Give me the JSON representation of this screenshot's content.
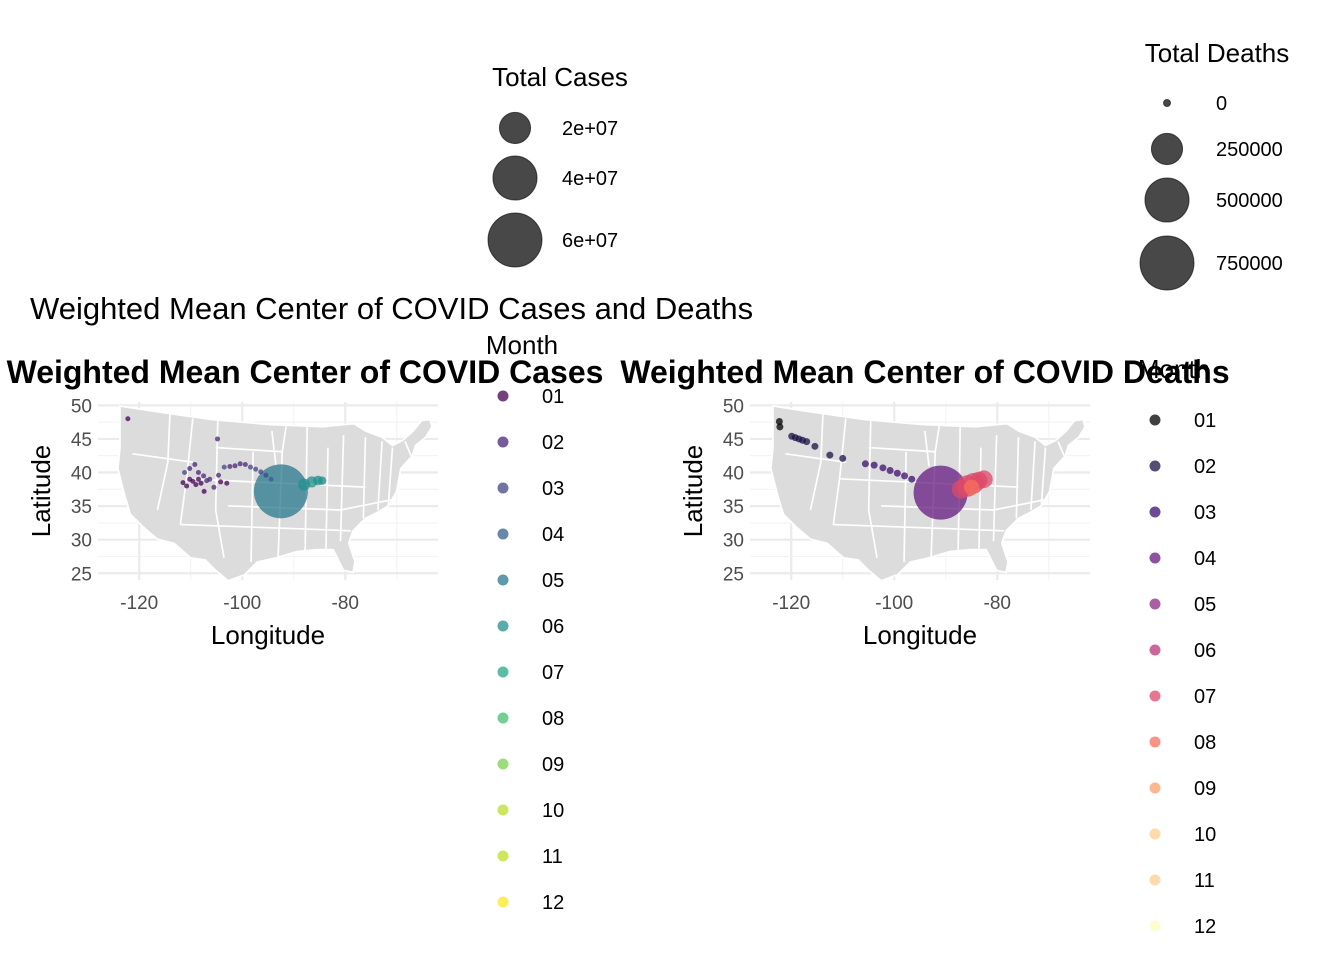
{
  "figure": {
    "title": "Weighted Mean Center of COVID Cases and Deaths"
  },
  "size_legends": [
    {
      "title": "Total Cases",
      "items": [
        {
          "label": "2e+07",
          "value": 20000000
        },
        {
          "label": "4e+07",
          "value": 40000000
        },
        {
          "label": "6e+07",
          "value": 60000000
        }
      ],
      "color": "#1a1a1a",
      "alpha": 0.8
    },
    {
      "title": "Total Deaths",
      "items": [
        {
          "label": "0",
          "value": 0
        },
        {
          "label": "250000",
          "value": 250000
        },
        {
          "label": "500000",
          "value": 500000
        },
        {
          "label": "750000",
          "value": 750000
        }
      ],
      "color": "#1a1a1a",
      "alpha": 0.8
    }
  ],
  "color_legends": [
    {
      "title": "Month",
      "palette": "viridis",
      "items": [
        {
          "label": "01",
          "color": "#440154"
        },
        {
          "label": "02",
          "color": "#482576"
        },
        {
          "label": "03",
          "color": "#414487"
        },
        {
          "label": "04",
          "color": "#35608D"
        },
        {
          "label": "05",
          "color": "#2A788E"
        },
        {
          "label": "06",
          "color": "#21908C"
        },
        {
          "label": "07",
          "color": "#22A884"
        },
        {
          "label": "08",
          "color": "#43BF71"
        },
        {
          "label": "09",
          "color": "#7AD151"
        },
        {
          "label": "10",
          "color": "#BBDF27"
        },
        {
          "label": "11",
          "color": "#BBDF27"
        },
        {
          "label": "12",
          "color": "#FDE725"
        }
      ]
    },
    {
      "title": "Month",
      "palette": "magma",
      "items": [
        {
          "label": "01",
          "color": "#000004"
        },
        {
          "label": "02",
          "color": "#1D1147"
        },
        {
          "label": "03",
          "color": "#3B0F70"
        },
        {
          "label": "04",
          "color": "#641A80"
        },
        {
          "label": "05",
          "color": "#8C2981"
        },
        {
          "label": "06",
          "color": "#B5367A"
        },
        {
          "label": "07",
          "color": "#DE4968"
        },
        {
          "label": "08",
          "color": "#F7705C"
        },
        {
          "label": "09",
          "color": "#FE9F6D"
        },
        {
          "label": "10",
          "color": "#FECF92"
        },
        {
          "label": "11",
          "color": "#FECF92"
        },
        {
          "label": "12",
          "color": "#FCFDBF"
        }
      ]
    }
  ],
  "chart_data": [
    {
      "type": "scatter",
      "title": "Weighted Mean Center of COVID Cases",
      "xlabel": "Longitude",
      "ylabel": "Latitude",
      "xlim": [
        -128,
        -62
      ],
      "ylim": [
        24,
        50.5
      ],
      "xticks": [
        -120,
        -100,
        -80
      ],
      "yticks": [
        25,
        30,
        35,
        40,
        45,
        50
      ],
      "grid": true,
      "basemap": "contiguous United States states",
      "size_legend": "Total Cases",
      "color_legend": "Month",
      "alpha": 0.75,
      "points": [
        {
          "lon": -122.2,
          "lat": 48.0,
          "month": "01",
          "total": 100000
        },
        {
          "lon": -104.8,
          "lat": 45.0,
          "month": "02",
          "total": 100000
        },
        {
          "lon": -111.5,
          "lat": 38.5,
          "month": "01",
          "total": 200000
        },
        {
          "lon": -110.8,
          "lat": 38.0,
          "month": "01",
          "total": 150000
        },
        {
          "lon": -110.2,
          "lat": 39.0,
          "month": "01",
          "total": 150000
        },
        {
          "lon": -109.6,
          "lat": 38.7,
          "month": "01",
          "total": 150000
        },
        {
          "lon": -109.0,
          "lat": 38.2,
          "month": "01",
          "total": 150000
        },
        {
          "lon": -108.5,
          "lat": 39.0,
          "month": "01",
          "total": 150000
        },
        {
          "lon": -108.0,
          "lat": 38.4,
          "month": "01",
          "total": 150000
        },
        {
          "lon": -107.4,
          "lat": 37.2,
          "month": "01",
          "total": 150000
        },
        {
          "lon": -106.9,
          "lat": 38.8,
          "month": "02",
          "total": 150000
        },
        {
          "lon": -105.5,
          "lat": 37.8,
          "month": "02",
          "total": 150000
        },
        {
          "lon": -104.2,
          "lat": 38.6,
          "month": "01",
          "total": 150000
        },
        {
          "lon": -103.0,
          "lat": 38.4,
          "month": "01",
          "total": 150000
        },
        {
          "lon": -111.2,
          "lat": 40.0,
          "month": "03",
          "total": 150000
        },
        {
          "lon": -110.2,
          "lat": 40.6,
          "month": "02",
          "total": 150000
        },
        {
          "lon": -109.2,
          "lat": 41.2,
          "month": "02",
          "total": 150000
        },
        {
          "lon": -108.5,
          "lat": 40.0,
          "month": "02",
          "total": 150000
        },
        {
          "lon": -107.5,
          "lat": 39.5,
          "month": "02",
          "total": 150000
        },
        {
          "lon": -106.3,
          "lat": 39.0,
          "month": "02",
          "total": 150000
        },
        {
          "lon": -104.6,
          "lat": 39.6,
          "month": "02",
          "total": 150000
        },
        {
          "lon": -103.5,
          "lat": 40.8,
          "month": "03",
          "total": 150000
        },
        {
          "lon": -102.4,
          "lat": 40.9,
          "month": "02",
          "total": 150000
        },
        {
          "lon": -101.4,
          "lat": 41.0,
          "month": "02",
          "total": 150000
        },
        {
          "lon": -100.4,
          "lat": 41.3,
          "month": "02",
          "total": 150000
        },
        {
          "lon": -99.4,
          "lat": 41.2,
          "month": "02",
          "total": 150000
        },
        {
          "lon": -98.4,
          "lat": 40.8,
          "month": "03",
          "total": 150000
        },
        {
          "lon": -97.4,
          "lat": 40.5,
          "month": "03",
          "total": 150000
        },
        {
          "lon": -96.4,
          "lat": 40.1,
          "month": "03",
          "total": 150000
        },
        {
          "lon": -95.4,
          "lat": 39.6,
          "month": "03",
          "total": 150000
        },
        {
          "lon": -94.4,
          "lat": 39.0,
          "month": "04",
          "total": 150000
        },
        {
          "lon": -92.5,
          "lat": 37.2,
          "month": "05",
          "total": 60000000
        },
        {
          "lon": -88.0,
          "lat": 38.2,
          "month": "06",
          "total": 3000000
        },
        {
          "lon": -86.5,
          "lat": 38.6,
          "month": "06",
          "total": 2500000
        },
        {
          "lon": -85.3,
          "lat": 38.8,
          "month": "06",
          "total": 2000000
        },
        {
          "lon": -84.5,
          "lat": 38.8,
          "month": "06",
          "total": 1500000
        }
      ]
    },
    {
      "type": "scatter",
      "title": "Weighted Mean Center of COVID Deaths",
      "xlabel": "Longitude",
      "ylabel": "Latitude",
      "xlim": [
        -128,
        -62
      ],
      "ylim": [
        24,
        50.5
      ],
      "xticks": [
        -120,
        -100,
        -80
      ],
      "yticks": [
        25,
        30,
        35,
        40,
        45,
        50
      ],
      "grid": true,
      "basemap": "contiguous United States states",
      "size_legend": "Total Deaths",
      "color_legend": "Month",
      "alpha": 0.75,
      "points": [
        {
          "lon": -122.3,
          "lat": 47.6,
          "month": "01",
          "total": 100
        },
        {
          "lon": -122.2,
          "lat": 46.8,
          "month": "01",
          "total": 100
        },
        {
          "lon": -119.9,
          "lat": 45.4,
          "month": "02",
          "total": 100
        },
        {
          "lon": -119.2,
          "lat": 45.2,
          "month": "02",
          "total": 100
        },
        {
          "lon": -118.5,
          "lat": 45.0,
          "month": "02",
          "total": 100
        },
        {
          "lon": -117.8,
          "lat": 44.8,
          "month": "02",
          "total": 100
        },
        {
          "lon": -117.0,
          "lat": 44.6,
          "month": "02",
          "total": 100
        },
        {
          "lon": -115.4,
          "lat": 43.9,
          "month": "02",
          "total": 100
        },
        {
          "lon": -112.5,
          "lat": 42.6,
          "month": "02",
          "total": 100
        },
        {
          "lon": -110.0,
          "lat": 42.1,
          "month": "02",
          "total": 100
        },
        {
          "lon": -105.6,
          "lat": 41.3,
          "month": "03",
          "total": 100
        },
        {
          "lon": -103.9,
          "lat": 41.1,
          "month": "03",
          "total": 100
        },
        {
          "lon": -102.2,
          "lat": 40.7,
          "month": "03",
          "total": 100
        },
        {
          "lon": -100.8,
          "lat": 40.3,
          "month": "03",
          "total": 100
        },
        {
          "lon": -99.4,
          "lat": 39.9,
          "month": "03",
          "total": 100
        },
        {
          "lon": -98.0,
          "lat": 39.5,
          "month": "03",
          "total": 100
        },
        {
          "lon": -96.6,
          "lat": 39.0,
          "month": "03",
          "total": 100
        },
        {
          "lon": -91.0,
          "lat": 37.0,
          "month": "04",
          "total": 750000
        },
        {
          "lon": -87.0,
          "lat": 37.5,
          "month": "07",
          "total": 90000
        },
        {
          "lon": -85.8,
          "lat": 38.0,
          "month": "07",
          "total": 120000
        },
        {
          "lon": -84.6,
          "lat": 38.4,
          "month": "07",
          "total": 110000
        },
        {
          "lon": -83.6,
          "lat": 38.8,
          "month": "07",
          "total": 80000
        },
        {
          "lon": -82.6,
          "lat": 39.0,
          "month": "07",
          "total": 80000
        },
        {
          "lon": -85.0,
          "lat": 37.8,
          "month": "08",
          "total": 60000
        }
      ]
    }
  ]
}
